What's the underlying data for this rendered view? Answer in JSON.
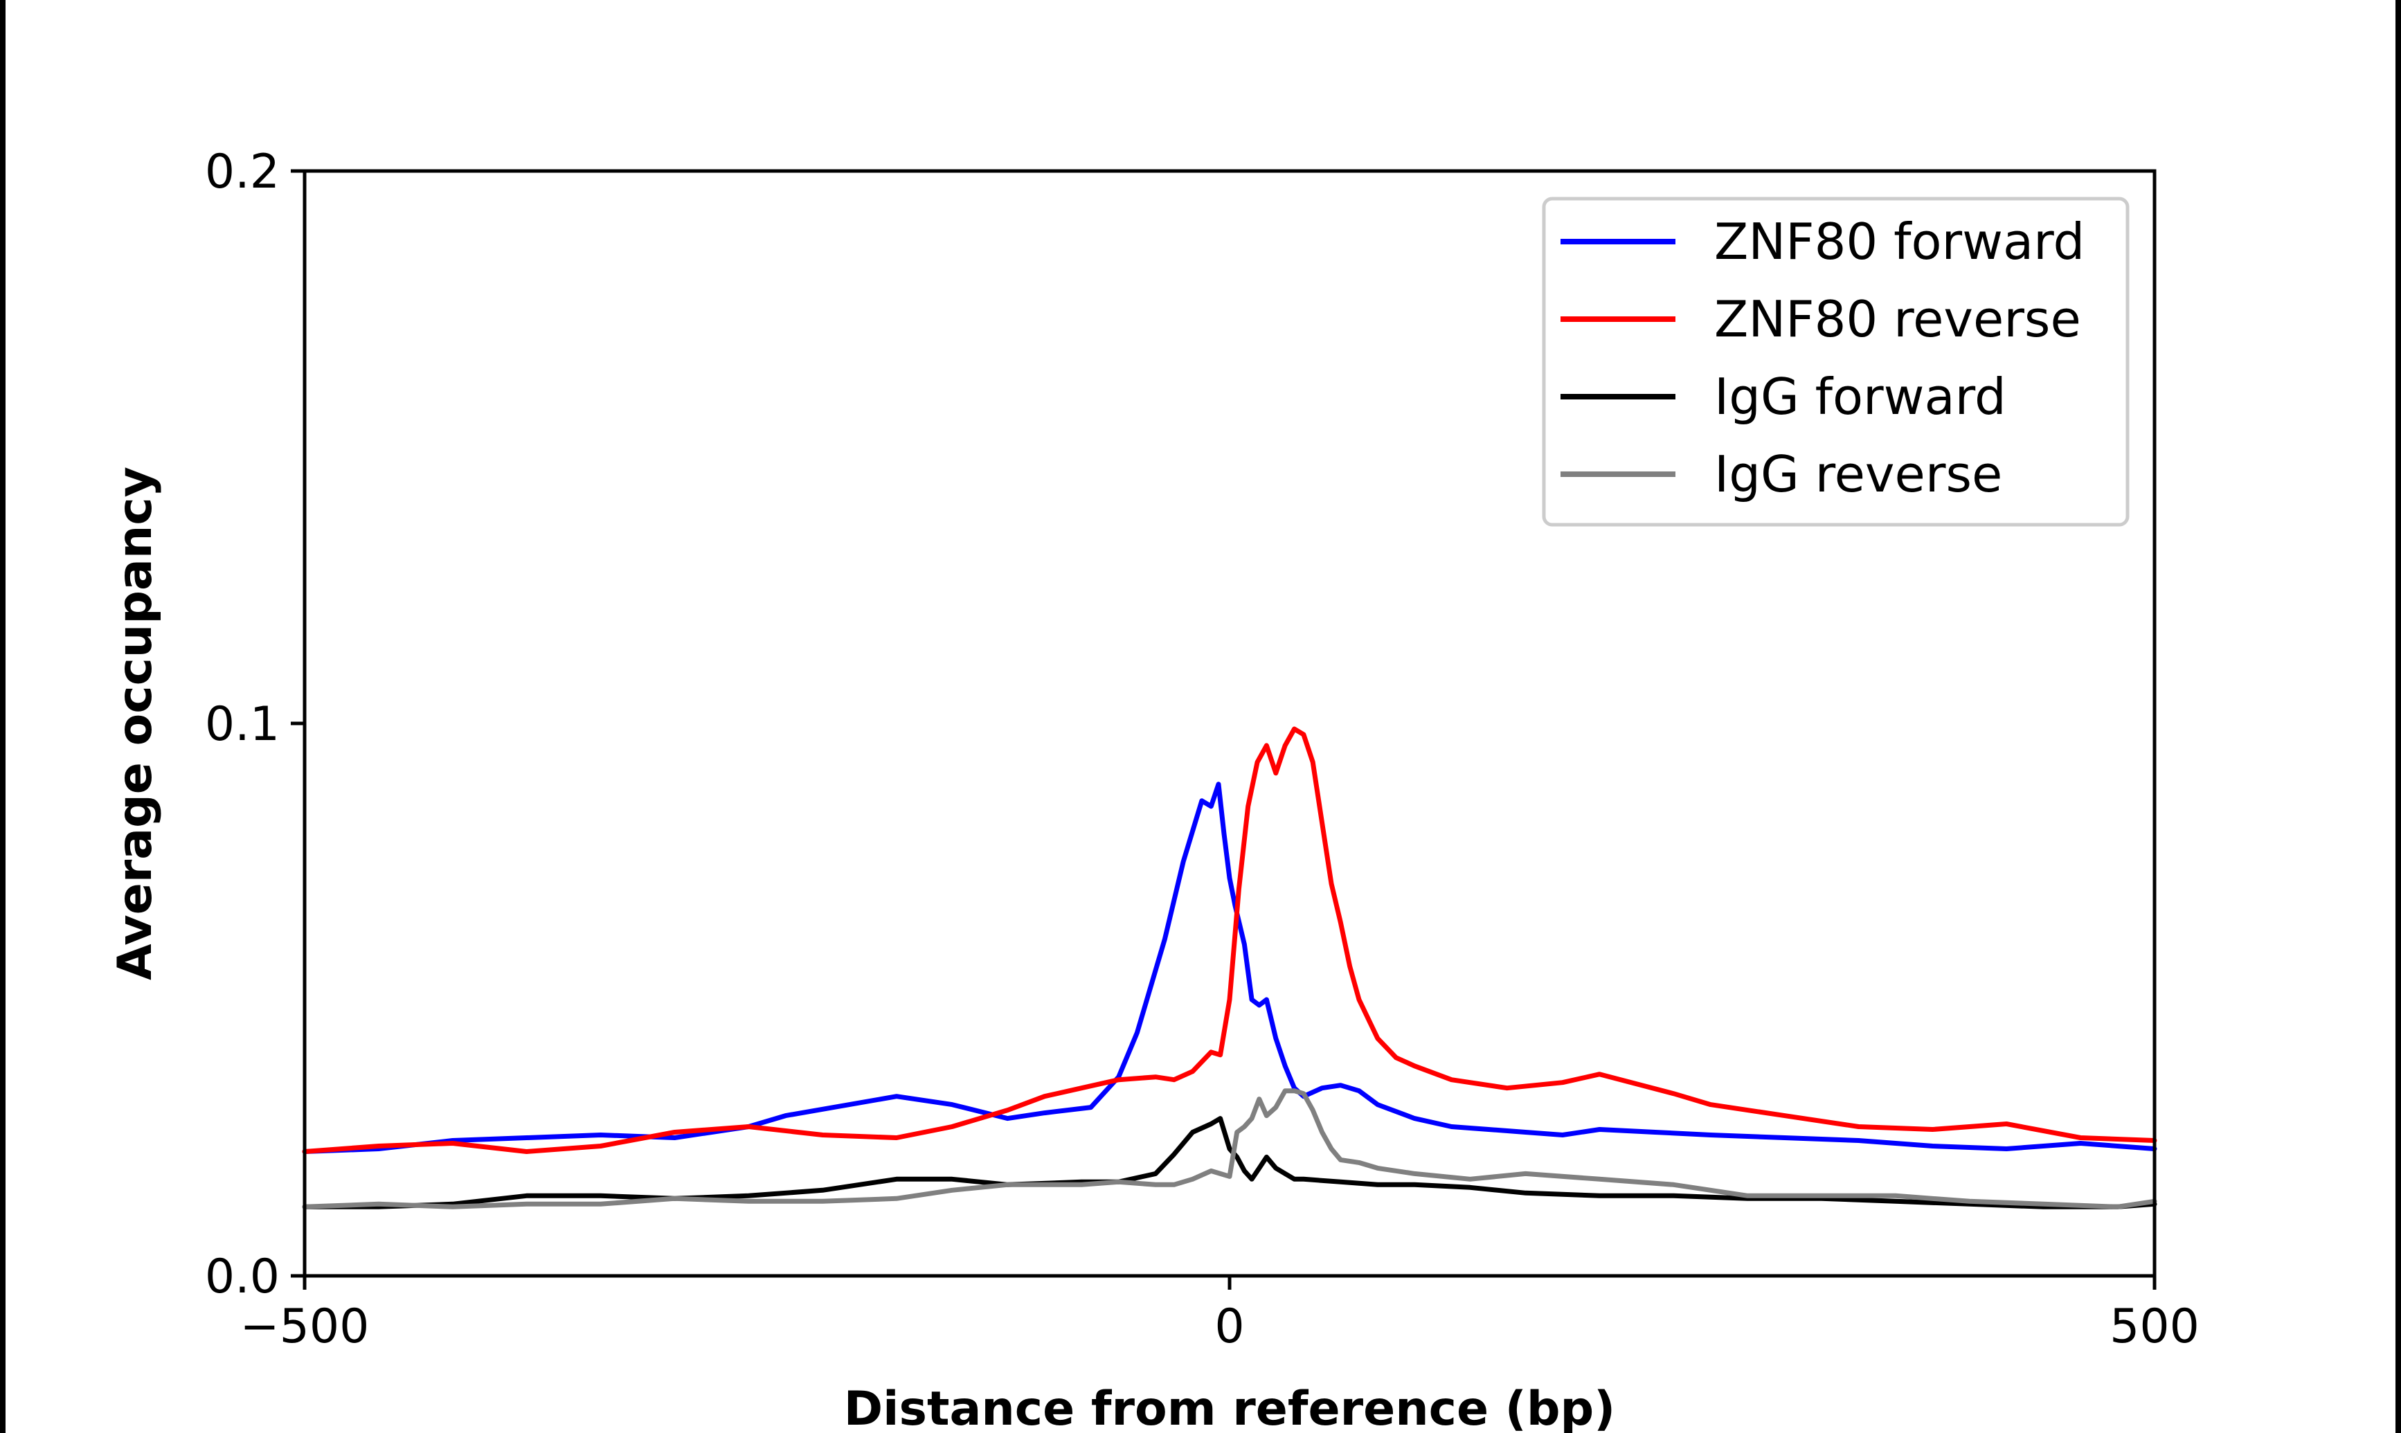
{
  "chart_data": {
    "type": "line",
    "title": "",
    "xlabel": "Distance from reference (bp)",
    "ylabel": "Average occupancy",
    "xlim": [
      -500,
      500
    ],
    "ylim": [
      0,
      0.2
    ],
    "xticks": [
      -500,
      0,
      500
    ],
    "xtick_labels": [
      "−500",
      "0",
      "500"
    ],
    "yticks": [
      0,
      0.1,
      0.2
    ],
    "ytick_labels": [
      "0.0",
      "0.1",
      "0.2"
    ],
    "grid": false,
    "legend_position": "top-right",
    "series": [
      {
        "name": "ZNF80 forward",
        "color": "#0000ff",
        "x": [
          -500,
          -460,
          -420,
          -380,
          -340,
          -300,
          -260,
          -240,
          -180,
          -150,
          -120,
          -100,
          -75,
          -60,
          -50,
          -35,
          -25,
          -15,
          -10,
          -6,
          -3,
          0,
          3,
          8,
          12,
          16,
          20,
          25,
          30,
          35,
          40,
          50,
          60,
          70,
          80,
          100,
          120,
          140,
          160,
          180,
          200,
          230,
          260,
          300,
          340,
          380,
          420,
          460,
          500
        ],
        "y": [
          0.0225,
          0.023,
          0.0245,
          0.025,
          0.0255,
          0.025,
          0.027,
          0.029,
          0.0325,
          0.031,
          0.0285,
          0.0295,
          0.0305,
          0.036,
          0.044,
          0.061,
          0.075,
          0.086,
          0.085,
          0.089,
          0.08,
          0.072,
          0.067,
          0.06,
          0.05,
          0.049,
          0.05,
          0.043,
          0.038,
          0.034,
          0.0325,
          0.034,
          0.0345,
          0.0335,
          0.031,
          0.0285,
          0.027,
          0.0265,
          0.026,
          0.0255,
          0.0265,
          0.026,
          0.0255,
          0.025,
          0.0245,
          0.0235,
          0.023,
          0.024,
          0.023
        ]
      },
      {
        "name": "ZNF80 reverse",
        "color": "#ff0000",
        "x": [
          -500,
          -460,
          -420,
          -380,
          -340,
          -300,
          -260,
          -220,
          -180,
          -150,
          -120,
          -100,
          -80,
          -60,
          -40,
          -30,
          -20,
          -10,
          -5,
          0,
          5,
          10,
          15,
          20,
          25,
          30,
          35,
          40,
          45,
          50,
          55,
          60,
          65,
          70,
          80,
          90,
          100,
          120,
          150,
          180,
          200,
          240,
          260,
          300,
          340,
          380,
          420,
          460,
          500
        ],
        "y": [
          0.0225,
          0.0235,
          0.024,
          0.0225,
          0.0235,
          0.026,
          0.027,
          0.0255,
          0.025,
          0.027,
          0.03,
          0.0325,
          0.034,
          0.0355,
          0.036,
          0.0355,
          0.037,
          0.0405,
          0.04,
          0.05,
          0.07,
          0.085,
          0.093,
          0.096,
          0.091,
          0.096,
          0.099,
          0.098,
          0.093,
          0.082,
          0.071,
          0.064,
          0.056,
          0.05,
          0.043,
          0.0395,
          0.038,
          0.0355,
          0.034,
          0.035,
          0.0365,
          0.033,
          0.031,
          0.029,
          0.027,
          0.0265,
          0.0275,
          0.025,
          0.0245
        ]
      },
      {
        "name": "IgG forward",
        "color": "#000000",
        "x": [
          -500,
          -460,
          -420,
          -380,
          -340,
          -300,
          -260,
          -220,
          -180,
          -150,
          -120,
          -80,
          -60,
          -40,
          -30,
          -20,
          -10,
          -5,
          0,
          4,
          8,
          12,
          16,
          20,
          25,
          30,
          35,
          40,
          60,
          80,
          100,
          130,
          160,
          200,
          240,
          280,
          320,
          360,
          400,
          440,
          480,
          500
        ],
        "y": [
          0.0125,
          0.0125,
          0.013,
          0.0145,
          0.0145,
          0.014,
          0.0145,
          0.0155,
          0.0175,
          0.0175,
          0.0165,
          0.017,
          0.017,
          0.0185,
          0.022,
          0.026,
          0.0275,
          0.0285,
          0.023,
          0.0215,
          0.019,
          0.0175,
          0.0195,
          0.0215,
          0.0195,
          0.0185,
          0.0175,
          0.0175,
          0.017,
          0.0165,
          0.0165,
          0.016,
          0.015,
          0.0145,
          0.0145,
          0.014,
          0.014,
          0.0135,
          0.013,
          0.0125,
          0.0125,
          0.013
        ]
      },
      {
        "name": "IgG reverse",
        "color": "#808080",
        "x": [
          -500,
          -460,
          -420,
          -380,
          -340,
          -300,
          -260,
          -220,
          -180,
          -150,
          -120,
          -80,
          -60,
          -40,
          -30,
          -20,
          -10,
          -5,
          0,
          4,
          8,
          12,
          16,
          20,
          25,
          30,
          35,
          40,
          45,
          50,
          55,
          60,
          70,
          80,
          100,
          130,
          160,
          200,
          240,
          280,
          320,
          360,
          400,
          440,
          480,
          500
        ],
        "y": [
          0.0125,
          0.013,
          0.0125,
          0.013,
          0.013,
          0.014,
          0.0135,
          0.0135,
          0.014,
          0.0155,
          0.0165,
          0.0165,
          0.017,
          0.0165,
          0.0165,
          0.0175,
          0.019,
          0.0185,
          0.018,
          0.026,
          0.027,
          0.0285,
          0.032,
          0.029,
          0.0305,
          0.0335,
          0.0335,
          0.033,
          0.03,
          0.026,
          0.023,
          0.021,
          0.0205,
          0.0195,
          0.0185,
          0.0175,
          0.0185,
          0.0175,
          0.0165,
          0.0145,
          0.0145,
          0.0145,
          0.0135,
          0.013,
          0.0125,
          0.0135
        ]
      }
    ]
  }
}
